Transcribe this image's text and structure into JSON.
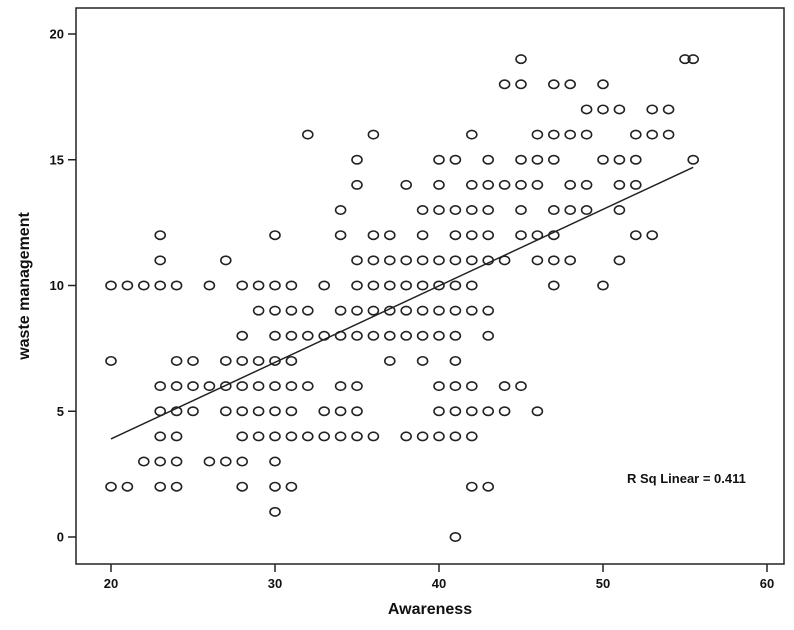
{
  "chart_data": {
    "type": "scatter",
    "title": "",
    "xlabel": "Awareness",
    "ylabel": "waste management",
    "xlim": [
      17,
      62
    ],
    "ylim": [
      -1,
      21
    ],
    "xticks": [
      20,
      30,
      40,
      50,
      60
    ],
    "yticks": [
      0,
      5,
      10,
      15,
      20
    ],
    "grid": false,
    "legend": "none",
    "marker": "open-circle",
    "fit_line": {
      "type": "linear",
      "x": [
        20,
        55.5
      ],
      "y": [
        3.9,
        14.7
      ]
    },
    "annotation": "R Sq Linear = 0.411",
    "series": [
      {
        "points": [
          [
            45,
            19
          ],
          [
            55,
            19
          ],
          [
            55.5,
            19
          ],
          [
            44,
            18
          ],
          [
            45,
            18
          ],
          [
            47,
            18
          ],
          [
            48,
            18
          ],
          [
            50,
            18
          ],
          [
            49,
            17
          ],
          [
            50,
            17
          ],
          [
            51,
            17
          ],
          [
            53,
            17
          ],
          [
            54,
            17
          ],
          [
            32,
            16
          ],
          [
            36,
            16
          ],
          [
            42,
            16
          ],
          [
            46,
            16
          ],
          [
            47,
            16
          ],
          [
            48,
            16
          ],
          [
            49,
            16
          ],
          [
            52,
            16
          ],
          [
            53,
            16
          ],
          [
            54,
            16
          ],
          [
            35,
            15
          ],
          [
            40,
            15
          ],
          [
            41,
            15
          ],
          [
            43,
            15
          ],
          [
            45,
            15
          ],
          [
            46,
            15
          ],
          [
            47,
            15
          ],
          [
            50,
            15
          ],
          [
            51,
            15
          ],
          [
            52,
            15
          ],
          [
            55.5,
            15
          ],
          [
            35,
            14
          ],
          [
            38,
            14
          ],
          [
            40,
            14
          ],
          [
            42,
            14
          ],
          [
            43,
            14
          ],
          [
            44,
            14
          ],
          [
            45,
            14
          ],
          [
            46,
            14
          ],
          [
            48,
            14
          ],
          [
            49,
            14
          ],
          [
            51,
            14
          ],
          [
            52,
            14
          ],
          [
            34,
            13
          ],
          [
            39,
            13
          ],
          [
            40,
            13
          ],
          [
            41,
            13
          ],
          [
            42,
            13
          ],
          [
            43,
            13
          ],
          [
            45,
            13
          ],
          [
            47,
            13
          ],
          [
            48,
            13
          ],
          [
            49,
            13
          ],
          [
            51,
            13
          ],
          [
            23,
            12
          ],
          [
            30,
            12
          ],
          [
            34,
            12
          ],
          [
            36,
            12
          ],
          [
            37,
            12
          ],
          [
            39,
            12
          ],
          [
            41,
            12
          ],
          [
            42,
            12
          ],
          [
            43,
            12
          ],
          [
            45,
            12
          ],
          [
            46,
            12
          ],
          [
            47,
            12
          ],
          [
            52,
            12
          ],
          [
            53,
            12
          ],
          [
            23,
            11
          ],
          [
            27,
            11
          ],
          [
            35,
            11
          ],
          [
            36,
            11
          ],
          [
            37,
            11
          ],
          [
            38,
            11
          ],
          [
            39,
            11
          ],
          [
            40,
            11
          ],
          [
            41,
            11
          ],
          [
            42,
            11
          ],
          [
            43,
            11
          ],
          [
            44,
            11
          ],
          [
            46,
            11
          ],
          [
            47,
            11
          ],
          [
            48,
            11
          ],
          [
            51,
            11
          ],
          [
            20,
            10
          ],
          [
            21,
            10
          ],
          [
            22,
            10
          ],
          [
            23,
            10
          ],
          [
            24,
            10
          ],
          [
            26,
            10
          ],
          [
            28,
            10
          ],
          [
            29,
            10
          ],
          [
            30,
            10
          ],
          [
            31,
            10
          ],
          [
            33,
            10
          ],
          [
            35,
            10
          ],
          [
            36,
            10
          ],
          [
            37,
            10
          ],
          [
            38,
            10
          ],
          [
            39,
            10
          ],
          [
            40,
            10
          ],
          [
            41,
            10
          ],
          [
            42,
            10
          ],
          [
            47,
            10
          ],
          [
            50,
            10
          ],
          [
            29,
            9
          ],
          [
            30,
            9
          ],
          [
            31,
            9
          ],
          [
            32,
            9
          ],
          [
            34,
            9
          ],
          [
            35,
            9
          ],
          [
            36,
            9
          ],
          [
            37,
            9
          ],
          [
            38,
            9
          ],
          [
            39,
            9
          ],
          [
            40,
            9
          ],
          [
            41,
            9
          ],
          [
            42,
            9
          ],
          [
            43,
            9
          ],
          [
            28,
            8
          ],
          [
            30,
            8
          ],
          [
            31,
            8
          ],
          [
            32,
            8
          ],
          [
            33,
            8
          ],
          [
            34,
            8
          ],
          [
            35,
            8
          ],
          [
            36,
            8
          ],
          [
            37,
            8
          ],
          [
            38,
            8
          ],
          [
            39,
            8
          ],
          [
            40,
            8
          ],
          [
            41,
            8
          ],
          [
            43,
            8
          ],
          [
            20,
            7
          ],
          [
            24,
            7
          ],
          [
            25,
            7
          ],
          [
            27,
            7
          ],
          [
            28,
            7
          ],
          [
            29,
            7
          ],
          [
            30,
            7
          ],
          [
            31,
            7
          ],
          [
            37,
            7
          ],
          [
            39,
            7
          ],
          [
            41,
            7
          ],
          [
            23,
            6
          ],
          [
            24,
            6
          ],
          [
            25,
            6
          ],
          [
            26,
            6
          ],
          [
            27,
            6
          ],
          [
            28,
            6
          ],
          [
            29,
            6
          ],
          [
            30,
            6
          ],
          [
            31,
            6
          ],
          [
            32,
            6
          ],
          [
            34,
            6
          ],
          [
            35,
            6
          ],
          [
            40,
            6
          ],
          [
            41,
            6
          ],
          [
            42,
            6
          ],
          [
            44,
            6
          ],
          [
            45,
            6
          ],
          [
            23,
            5
          ],
          [
            24,
            5
          ],
          [
            25,
            5
          ],
          [
            27,
            5
          ],
          [
            28,
            5
          ],
          [
            29,
            5
          ],
          [
            30,
            5
          ],
          [
            31,
            5
          ],
          [
            33,
            5
          ],
          [
            34,
            5
          ],
          [
            35,
            5
          ],
          [
            40,
            5
          ],
          [
            41,
            5
          ],
          [
            42,
            5
          ],
          [
            43,
            5
          ],
          [
            44,
            5
          ],
          [
            46,
            5
          ],
          [
            23,
            4
          ],
          [
            24,
            4
          ],
          [
            28,
            4
          ],
          [
            29,
            4
          ],
          [
            30,
            4
          ],
          [
            31,
            4
          ],
          [
            32,
            4
          ],
          [
            33,
            4
          ],
          [
            34,
            4
          ],
          [
            35,
            4
          ],
          [
            36,
            4
          ],
          [
            38,
            4
          ],
          [
            39,
            4
          ],
          [
            40,
            4
          ],
          [
            41,
            4
          ],
          [
            42,
            4
          ],
          [
            22,
            3
          ],
          [
            23,
            3
          ],
          [
            24,
            3
          ],
          [
            26,
            3
          ],
          [
            27,
            3
          ],
          [
            28,
            3
          ],
          [
            30,
            3
          ],
          [
            20,
            2
          ],
          [
            21,
            2
          ],
          [
            23,
            2
          ],
          [
            24,
            2
          ],
          [
            28,
            2
          ],
          [
            30,
            2
          ],
          [
            31,
            2
          ],
          [
            42,
            2
          ],
          [
            43,
            2
          ],
          [
            30,
            1
          ],
          [
            41,
            0
          ]
        ]
      }
    ]
  }
}
